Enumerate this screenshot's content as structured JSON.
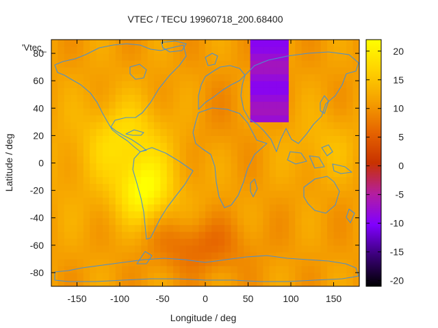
{
  "chart_data": {
    "type": "heatmap",
    "title": "VTEC / TECU 19960718_200.68400",
    "xlabel": "Longitude / deg",
    "ylabel": "Latitude / deg",
    "key_label": "'Vtec_",
    "xlim": [
      -180,
      180
    ],
    "ylim": [
      -90,
      90
    ],
    "xticks": [
      -150,
      -100,
      -50,
      0,
      50,
      100,
      150
    ],
    "yticks": [
      -80,
      -60,
      -40,
      -20,
      0,
      20,
      40,
      60,
      80
    ],
    "colorbar": {
      "range": [
        -21,
        22
      ],
      "ticks": [
        -20,
        -15,
        -10,
        -5,
        0,
        5,
        10,
        15,
        20
      ],
      "palette": [
        "#000000",
        "#3a0078",
        "#8000ff",
        "#b41ea0",
        "#c83200",
        "#e66400",
        "#f5a000",
        "#ffd200",
        "#ffff00"
      ]
    },
    "grid": false,
    "overlay": "coastlines",
    "coastline_color": "#4a8fd0",
    "features": [
      {
        "type": "peak",
        "lon": -72,
        "lat": -20,
        "value": 20
      },
      {
        "type": "high",
        "lon": -95,
        "lat": 18,
        "value": 16
      },
      {
        "type": "high",
        "lon": 140,
        "lat": 12,
        "value": 14
      },
      {
        "type": "low_band",
        "lon": [
          55,
          95
        ],
        "lat": [
          30,
          90
        ],
        "value": -8
      },
      {
        "type": "low",
        "lon": -10,
        "lat": -60,
        "value": 6
      }
    ]
  }
}
